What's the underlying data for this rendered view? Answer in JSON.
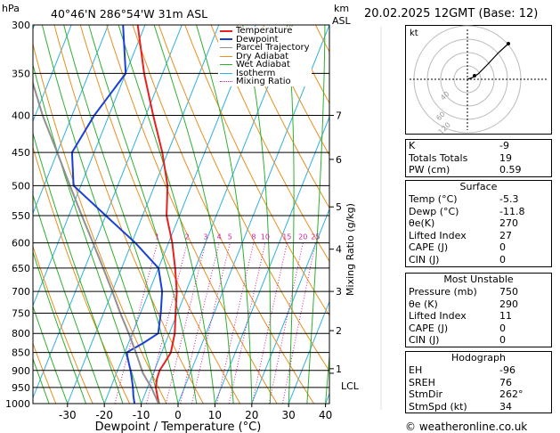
{
  "header": {
    "location": "40°46'N  286°54'W  31m  ASL",
    "date": "20.02.2025  12GMT  (Base: 12)",
    "pressure_unit": "hPa",
    "height_unit_top": "km",
    "height_unit_bottom": "ASL"
  },
  "legend": [
    {
      "label": "Temperature",
      "color": "#e82020"
    },
    {
      "label": "Dewpoint",
      "color": "#1a3fd8"
    },
    {
      "label": "Parcel Trajectory",
      "color": "#909090"
    },
    {
      "label": "Dry Adiabat",
      "color": "#e89020"
    },
    {
      "label": "Wet Adiabat",
      "color": "#30b030"
    },
    {
      "label": "Isotherm",
      "color": "#30b0e0"
    },
    {
      "label": "Mixing Ratio",
      "color": "#d020a0"
    }
  ],
  "chart_data": {
    "type": "line",
    "xlabel": "Dewpoint / Temperature (°C)",
    "ylabel_right": "Mixing Ratio (g/kg)",
    "xlim": [
      -35,
      40
    ],
    "ylim": [
      1000,
      300
    ],
    "y_scale": "log",
    "x_ticks": [
      -30,
      -20,
      -10,
      0,
      10,
      20,
      30,
      40
    ],
    "pressure_ticks": [
      300,
      350,
      400,
      450,
      500,
      550,
      600,
      650,
      700,
      750,
      800,
      850,
      900,
      950,
      1000
    ],
    "km_ticks": [
      {
        "label": "7",
        "p": 400
      },
      {
        "label": "6",
        "p": 460
      },
      {
        "label": "5",
        "p": 535
      },
      {
        "label": "4",
        "p": 612
      },
      {
        "label": "3",
        "p": 700
      },
      {
        "label": "2",
        "p": 793
      },
      {
        "label": "1",
        "p": 895
      }
    ],
    "lcl": {
      "label": "LCL",
      "p": 908
    },
    "mixing_ratio_labels": [
      "1",
      "2",
      "3",
      "4",
      "5",
      "8",
      "10",
      "15",
      "20",
      "25"
    ],
    "mixing_ratio_values": [
      1,
      2,
      3,
      4,
      5,
      8,
      10,
      15,
      20,
      25
    ],
    "series": [
      {
        "name": "Temperature",
        "color": "#e82020",
        "p": [
          1000,
          975,
          950,
          925,
          900,
          875,
          850,
          800,
          750,
          700,
          650,
          600,
          550,
          500,
          450,
          400,
          350,
          300
        ],
        "t": [
          -5.3,
          -6.5,
          -7.8,
          -8.4,
          -8.6,
          -8.0,
          -7.5,
          -8.5,
          -10.5,
          -12.5,
          -15.5,
          -19,
          -23.5,
          -26.5,
          -31.5,
          -38,
          -45,
          -52
        ]
      },
      {
        "name": "Dewpoint",
        "color": "#1a3fd8",
        "p": [
          1000,
          975,
          950,
          925,
          900,
          875,
          850,
          825,
          800,
          750,
          700,
          650,
          600,
          550,
          500,
          450,
          400,
          350,
          300
        ],
        "t": [
          -11.8,
          -13,
          -14,
          -15.2,
          -16.5,
          -18,
          -19.5,
          -16,
          -13,
          -14.5,
          -16.5,
          -20,
          -29,
          -40,
          -52,
          -56,
          -54,
          -50,
          -56
        ]
      },
      {
        "name": "Parcel Trajectory",
        "color": "#909090",
        "p": [
          1000,
          950,
          908,
          850,
          800,
          750,
          700,
          650,
          600,
          550,
          500,
          450,
          400,
          350,
          300
        ],
        "t": [
          -5.3,
          -9,
          -12.8,
          -17,
          -21,
          -25.5,
          -30,
          -35,
          -40.5,
          -46.5,
          -53,
          -60,
          -68,
          -76,
          -85
        ]
      }
    ]
  },
  "hodograph": {
    "label": "kt",
    "rings": [
      "40",
      "60",
      "120"
    ]
  },
  "indices": [
    {
      "label": "K",
      "value": "-9"
    },
    {
      "label": "Totals Totals",
      "value": "19"
    },
    {
      "label": "PW (cm)",
      "value": "0.59"
    }
  ],
  "surface": {
    "title": "Surface",
    "rows": [
      {
        "label": "Temp (°C)",
        "value": "-5.3"
      },
      {
        "label": "Dewp (°C)",
        "value": "-11.8"
      },
      {
        "label": "θe(K)",
        "value": "270"
      },
      {
        "label": "Lifted Index",
        "value": "27"
      },
      {
        "label": "CAPE (J)",
        "value": "0"
      },
      {
        "label": "CIN (J)",
        "value": "0"
      }
    ]
  },
  "most_unstable": {
    "title": "Most Unstable",
    "rows": [
      {
        "label": "Pressure (mb)",
        "value": "750"
      },
      {
        "label": "θe (K)",
        "value": "290"
      },
      {
        "label": "Lifted Index",
        "value": "11"
      },
      {
        "label": "CAPE (J)",
        "value": "0"
      },
      {
        "label": "CIN (J)",
        "value": "0"
      }
    ]
  },
  "hodograph_params": {
    "title": "Hodograph",
    "rows": [
      {
        "label": "EH",
        "value": "-96"
      },
      {
        "label": "SREH",
        "value": "76"
      },
      {
        "label": "StmDir",
        "value": "262°"
      },
      {
        "label": "StmSpd (kt)",
        "value": "34"
      }
    ]
  },
  "credit": "© weatheronline.co.uk"
}
